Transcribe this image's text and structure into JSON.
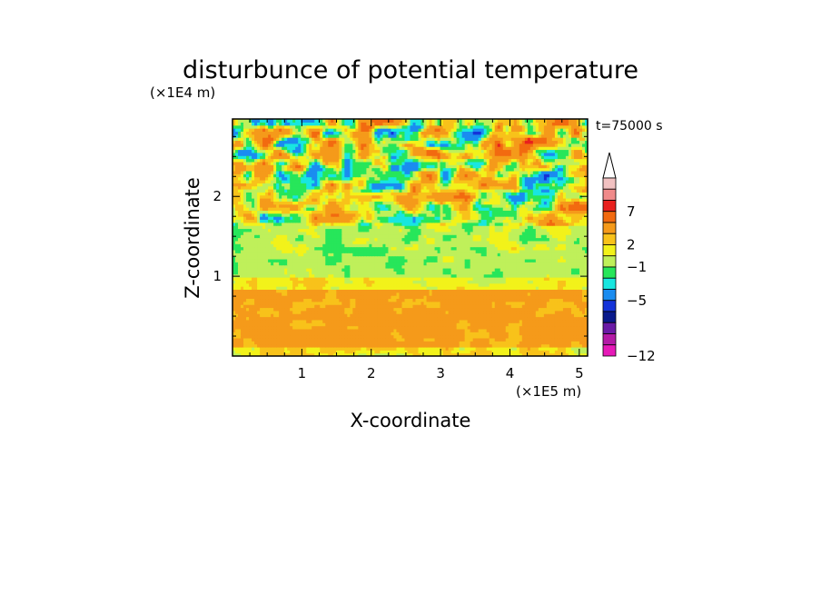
{
  "chart_data": {
    "type": "heatmap",
    "title": "disturbunce of potential temperature",
    "xlabel": "X-coordinate",
    "ylabel": "Z-coordinate",
    "x_unit": "(×1E5 m)",
    "y_unit": "(×1E4 m)",
    "time_label": "t=75000 s",
    "xlim": [
      0,
      5.12
    ],
    "ylim": [
      0,
      2.97
    ],
    "x_ticks": [
      1,
      2,
      3,
      4,
      5
    ],
    "y_ticks": [
      1,
      2
    ],
    "colorbar": {
      "labeled_ticks": [
        7,
        2,
        -1,
        -5,
        -12
      ],
      "levels_top_to_bottom": [
        {
          "color": "#f2c1c1"
        },
        {
          "color": "#f08a8a"
        },
        {
          "color": "#e8201e"
        },
        {
          "color": "#f26a10"
        },
        {
          "color": "#f59a1a"
        },
        {
          "color": "#f8c21a"
        },
        {
          "color": "#f2f21a"
        },
        {
          "color": "#bff05a"
        },
        {
          "color": "#27e65a"
        },
        {
          "color": "#18e6e0"
        },
        {
          "color": "#1a8cf0"
        },
        {
          "color": "#1433d9"
        },
        {
          "color": "#0a1a8c"
        },
        {
          "color": "#6a1aa6"
        },
        {
          "color": "#b41aa6"
        },
        {
          "color": "#e619b8"
        }
      ]
    },
    "bands": [
      {
        "z": [
          0.0,
          0.12
        ],
        "class": "mixed-low"
      },
      {
        "z": [
          0.12,
          0.85
        ],
        "class": "warm-orange-yellow"
      },
      {
        "z": [
          0.85,
          1.0
        ],
        "class": "yellow-lightgreen"
      },
      {
        "z": [
          1.0,
          1.35
        ],
        "class": "green-cyan"
      },
      {
        "z": [
          1.35,
          1.65
        ],
        "class": "green-yellow"
      },
      {
        "z": [
          1.65,
          2.97
        ],
        "class": "turbulent-mixed"
      }
    ]
  },
  "colors": {
    "axis": "#000000",
    "background": "#ffffff"
  }
}
